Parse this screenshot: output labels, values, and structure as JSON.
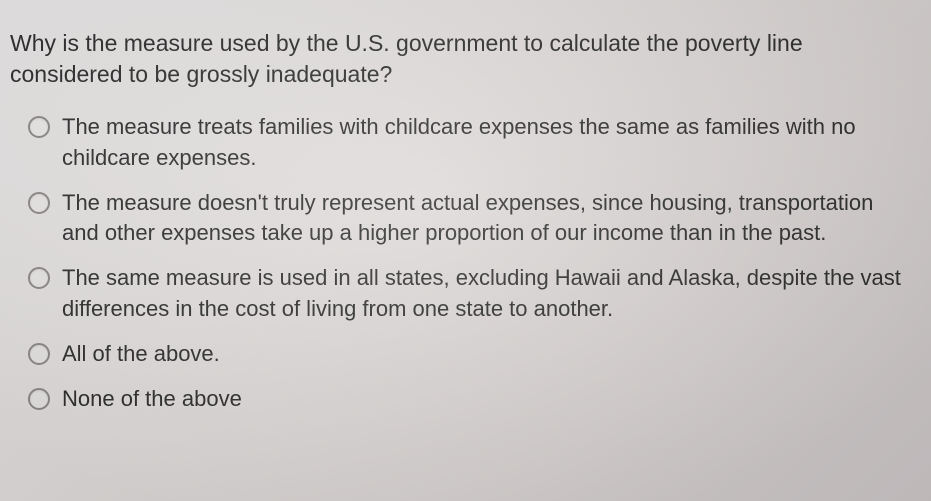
{
  "question": "Why is the measure used by the U.S. government to calculate the poverty line considered to be grossly inadequate?",
  "options": [
    {
      "text": "The measure treats families with childcare expenses the same as families with no childcare expenses."
    },
    {
      "text": "The measure doesn't truly represent actual expenses, since housing, transportation and other expenses take up a higher proportion of our income than in the past."
    },
    {
      "text": "The same measure is used in all states, excluding Hawaii and Alaska, despite the vast differences in the cost of living from one state to another."
    },
    {
      "text": "All of the above."
    },
    {
      "text": "None of the above"
    }
  ],
  "colors": {
    "text": "#2a2a2a",
    "radio_border": "#8a8684",
    "background_start": "#e8e6e6",
    "background_end": "#c9c3c4"
  }
}
